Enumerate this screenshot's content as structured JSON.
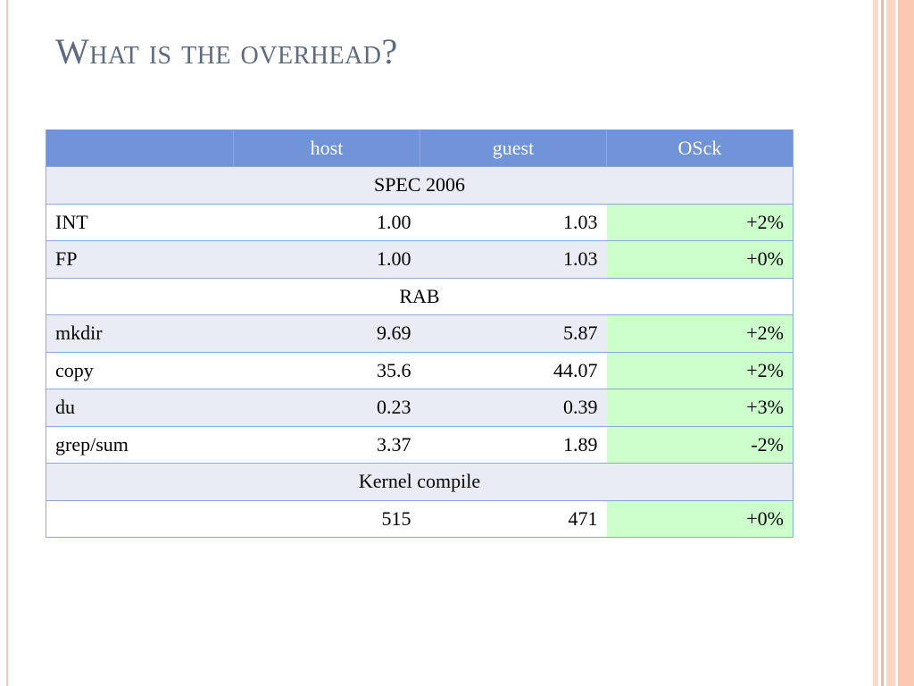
{
  "title": "What is the overhead?",
  "table": {
    "columns": [
      "host",
      "guest",
      "OSck"
    ],
    "sections": [
      {
        "heading": "SPEC 2006",
        "rows": [
          {
            "label": "INT",
            "cells": [
              "1.00",
              "1.03",
              "+2%"
            ]
          },
          {
            "label": "FP",
            "cells": [
              "1.00",
              "1.03",
              "+0%"
            ]
          }
        ]
      },
      {
        "heading": "RAB",
        "rows": [
          {
            "label": "mkdir",
            "cells": [
              "9.69",
              "5.87",
              "+2%"
            ]
          },
          {
            "label": "copy",
            "cells": [
              "35.6",
              "44.07",
              "+2%"
            ]
          },
          {
            "label": "du",
            "cells": [
              "0.23",
              "0.39",
              "+3%"
            ]
          },
          {
            "label": "grep/sum",
            "cells": [
              "3.37",
              "1.89",
              "-2%"
            ]
          }
        ]
      },
      {
        "heading": "Kernel compile",
        "rows": [
          {
            "cells": [
              "515",
              "471",
              "+0%"
            ]
          }
        ]
      }
    ]
  }
}
